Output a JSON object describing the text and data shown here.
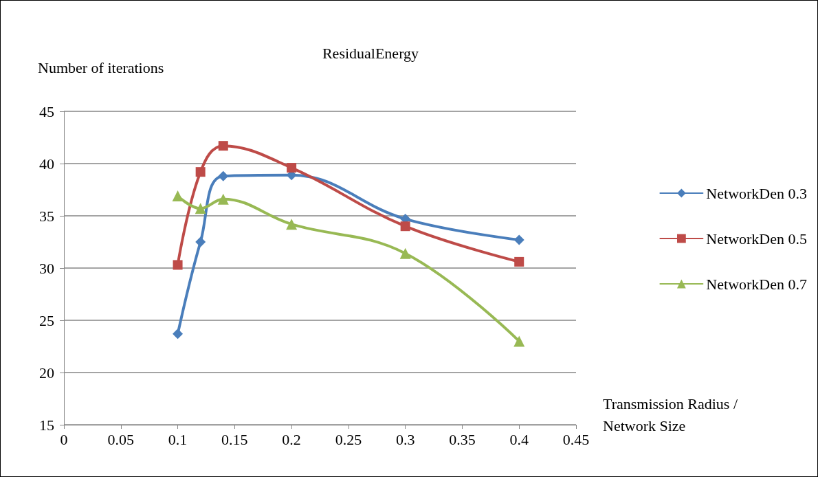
{
  "chart_data": {
    "type": "line",
    "title": "ResidualEnergy",
    "ylabel": "Number of iterations",
    "xlabel": "Transmission Radius / Network Size",
    "x": [
      0.1,
      0.12,
      0.14,
      0.2,
      0.3,
      0.4
    ],
    "series": [
      {
        "name": "NetworkDen 0.3",
        "color": "#4a7ebb",
        "marker": "diamond",
        "values": [
          23.7,
          32.5,
          38.8,
          38.9,
          34.7,
          32.7
        ]
      },
      {
        "name": "NetworkDen 0.5",
        "color": "#be4b48",
        "marker": "square",
        "values": [
          30.3,
          39.2,
          41.7,
          39.6,
          34.0,
          30.6
        ]
      },
      {
        "name": "NetworkDen 0.7",
        "color": "#98b954",
        "marker": "triangle",
        "values": [
          36.9,
          35.7,
          36.6,
          34.2,
          31.4,
          23.0
        ]
      }
    ],
    "xlim": [
      0,
      0.45
    ],
    "xticks": [
      0,
      0.05,
      0.1,
      0.15,
      0.2,
      0.25,
      0.3,
      0.35,
      0.4,
      0.45
    ],
    "ylim": [
      15,
      45
    ],
    "yticks": [
      15,
      20,
      25,
      30,
      35,
      40,
      45
    ],
    "grid": "y",
    "legend": "right",
    "line_style": "solid"
  }
}
